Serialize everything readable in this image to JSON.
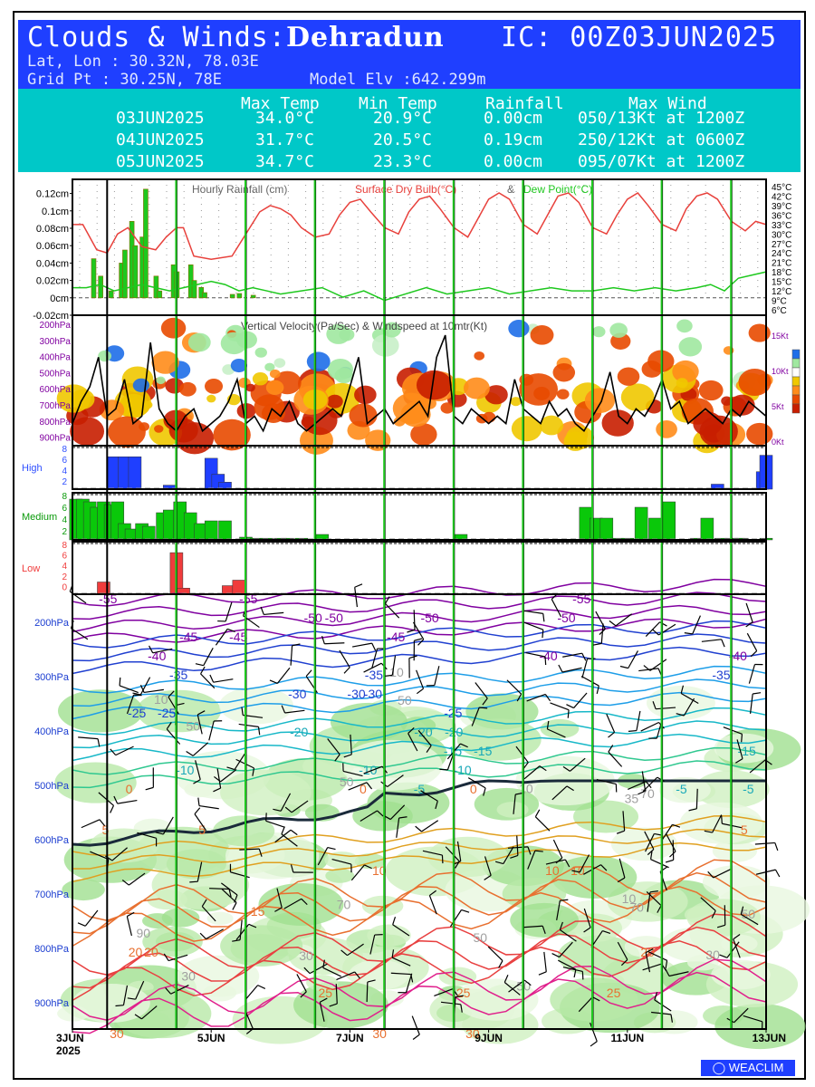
{
  "header": {
    "title_prefix": "Clouds & Winds:",
    "station": "Dehradun",
    "ic": "IC: 00Z03JUN2025",
    "latlon": "Lat, Lon : 30.32N, 78.03E",
    "gridpt": "Grid Pt  : 30.25N, 78E",
    "model_elv": "Model Elv :642.299m"
  },
  "summary": {
    "headers": [
      "Max Temp",
      "Min Temp",
      "Rainfall",
      "Max Wind"
    ],
    "rows": [
      {
        "date": "03JUN2025",
        "max_temp": "34.0°C",
        "min_temp": "20.9°C",
        "rainfall": "0.00cm",
        "max_wind": "050/13Kt at 1200Z"
      },
      {
        "date": "04JUN2025",
        "max_temp": "31.7°C",
        "min_temp": "20.5°C",
        "rainfall": "0.19cm",
        "max_wind": "250/12Kt at 0600Z"
      },
      {
        "date": "05JUN2025",
        "max_temp": "34.7°C",
        "min_temp": "23.3°C",
        "rainfall": "0.00cm",
        "max_wind": "095/07Kt at 1200Z"
      }
    ]
  },
  "colors": {
    "header_bg": "#1f3fff",
    "table_bg": "#00c8c8",
    "temp": "#e8413c",
    "dew": "#1ec81e",
    "rain": "#1ec81e",
    "high": "#1f3fff",
    "medium": "#0ac80a",
    "low": "#f03c3c",
    "vv_line": "#000000",
    "day_line": "#000000",
    "noon_line": "#1ec81e"
  },
  "chart_data": [
    {
      "type": "bar",
      "title": "Hourly Rainfall (cm)",
      "ylabels_left": [
        "0.12cm",
        "0.1cm",
        "0.08cm",
        "0.06cm",
        "0.04cm",
        "0.02cm",
        "0cm",
        "-0.02cm"
      ],
      "ylim": [
        -0.02,
        0.13
      ],
      "x": [
        0.3,
        0.4,
        0.55,
        0.7,
        0.75,
        0.85,
        0.9,
        1.0,
        1.05,
        1.2,
        1.25,
        1.45,
        1.5,
        1.7,
        1.75,
        1.85,
        1.9,
        2.3,
        2.4,
        2.6
      ],
      "values": [
        0.045,
        0.025,
        0.008,
        0.04,
        0.055,
        0.088,
        0.06,
        0.07,
        0.125,
        0.025,
        0.008,
        0.038,
        0.03,
        0.038,
        0.02,
        0.012,
        0.006,
        0.004,
        0.005,
        0.003
      ]
    },
    {
      "type": "line",
      "series": [
        {
          "name": "Surface Dry Bulb(°C)",
          "x": [
            0,
            0.15,
            0.35,
            0.5,
            0.65,
            0.8,
            1.0,
            1.2,
            1.35,
            1.5,
            1.6,
            1.75,
            2.0,
            2.3,
            2.5,
            2.7,
            2.85,
            3.0,
            3.15,
            3.3,
            3.5,
            3.7,
            3.85,
            4.0,
            4.15,
            4.3,
            4.5,
            4.7,
            4.85,
            5.0,
            5.15,
            5.3,
            5.5,
            5.7,
            5.85,
            6.0,
            6.15,
            6.3,
            6.5,
            6.7,
            6.85,
            7.0,
            7.15,
            7.3,
            7.5,
            7.7,
            7.85,
            8.0,
            8.15,
            8.3,
            8.5,
            8.7,
            8.85,
            9.0,
            9.15,
            9.3,
            9.5,
            9.7,
            9.85,
            10.0
          ],
          "values": [
            33,
            33,
            25,
            24,
            30,
            32,
            26,
            25,
            29,
            32,
            32,
            23,
            22,
            23,
            30,
            37,
            39,
            38,
            36,
            32,
            29,
            30,
            36,
            40,
            41,
            37,
            32,
            30,
            37,
            41,
            42,
            38,
            32,
            29,
            35,
            41,
            43,
            41,
            33,
            30,
            36,
            42,
            43,
            40,
            32,
            30,
            36,
            41,
            43,
            39,
            33,
            31,
            38,
            42,
            43,
            41,
            34,
            31,
            34,
            33
          ]
        },
        {
          "name": "Dew Point(°C)",
          "x": [
            0,
            0.2,
            0.4,
            0.6,
            0.8,
            1.0,
            1.2,
            1.4,
            1.6,
            1.8,
            2.0,
            2.2,
            2.4,
            2.6,
            2.8,
            3.0,
            3.3,
            3.6,
            3.9,
            4.2,
            4.5,
            4.8,
            5.1,
            5.4,
            5.7,
            6.0,
            6.3,
            6.6,
            6.9,
            7.2,
            7.5,
            7.8,
            8.1,
            8.4,
            8.7,
            9.0,
            9.2,
            9.4,
            9.6,
            9.8,
            10.0
          ],
          "values": [
            13,
            13,
            14,
            12,
            13,
            14,
            13,
            12,
            13,
            14,
            15,
            14,
            12,
            13,
            12,
            11,
            12,
            13,
            10,
            12,
            9,
            11,
            13,
            11,
            12,
            13,
            11,
            12,
            13,
            12,
            12,
            13,
            12,
            13,
            12,
            13,
            14,
            12,
            16,
            17,
            18
          ]
        }
      ],
      "ylabels_right": [
        "45°C",
        "42°C",
        "39°C",
        "36°C",
        "33°C",
        "30°C",
        "27°C",
        "24°C",
        "21°C",
        "18°C",
        "15°C",
        "12°C",
        "9°C",
        "6°C"
      ],
      "ylim": [
        6,
        45
      ]
    },
    {
      "type": "heatmap",
      "title": "Vertical Velocity(Pa/Sec) & Windspeed at 10mtr(Kt)",
      "ylabels_left": [
        "200hPa",
        "300hPa",
        "400hPa",
        "500hPa",
        "600hPa",
        "700hPa",
        "800hPa",
        "900hPa"
      ],
      "ylabels_right": [
        "15Kt",
        "10Kt",
        "5Kt",
        "0Kt"
      ],
      "windspeed_kt": [
        3,
        6,
        8,
        12,
        4,
        5,
        9,
        3,
        4,
        14,
        5,
        3,
        2,
        4,
        5,
        2,
        3,
        4,
        6,
        9,
        3,
        4,
        2,
        5,
        4,
        6,
        3,
        2,
        3,
        4,
        5,
        4,
        8,
        12,
        3,
        4,
        5,
        3,
        4,
        5,
        6,
        4,
        12,
        15,
        4,
        3,
        5,
        4,
        3,
        4,
        3,
        9,
        5,
        4,
        3,
        6,
        4,
        5,
        3,
        2,
        4,
        6,
        10,
        4,
        3,
        5,
        4,
        6,
        9,
        5,
        6,
        3,
        4,
        5,
        4,
        3,
        5,
        4,
        6,
        5,
        4
      ]
    },
    {
      "type": "bar",
      "title": "High",
      "ylabels": [
        "8",
        "6",
        "4",
        "2"
      ],
      "ylim": [
        0,
        8
      ],
      "x": [
        0.6,
        0.75,
        0.9,
        1.4,
        1.55,
        2.0,
        2.1,
        2.2,
        9.3,
        9.95,
        10.0
      ],
      "values": [
        6.5,
        6.5,
        6.5,
        0.8,
        0.2,
        6.2,
        3.0,
        1.4,
        1.0,
        3.5,
        6.8
      ]
    },
    {
      "type": "bar",
      "title": "Medium",
      "ylabels": [
        "8",
        "6",
        "4",
        "2"
      ],
      "ylim": [
        0,
        8
      ],
      "x": [
        0.05,
        0.15,
        0.25,
        0.35,
        0.45,
        0.55,
        0.65,
        0.75,
        0.85,
        1.0,
        1.1,
        1.3,
        1.4,
        1.55,
        1.7,
        1.85,
        2.0,
        2.2,
        2.5,
        2.65,
        2.8,
        3.0,
        3.1,
        3.3,
        3.6,
        5.6,
        7.4,
        7.55,
        7.7,
        7.85,
        8.0,
        8.2,
        8.4,
        8.6,
        9.0,
        9.15,
        9.35,
        9.5,
        9.6,
        9.65,
        10.0
      ],
      "values": [
        7.5,
        7.5,
        7,
        6,
        7,
        6.5,
        7,
        3,
        2,
        3,
        2.5,
        5,
        5.5,
        7,
        5,
        3,
        3.5,
        3.5,
        0.5,
        0.3,
        0.3,
        0.3,
        0.3,
        0.3,
        1,
        1,
        6,
        4,
        4,
        0.3,
        0.3,
        6,
        4,
        7,
        0.3,
        4,
        0.3,
        0.3,
        0.3,
        0.3,
        0.3
      ]
    },
    {
      "type": "bar",
      "title": "Low",
      "ylabels": [
        "8",
        "6",
        "4",
        "2",
        "0"
      ],
      "ylim": [
        0,
        8
      ],
      "x": [
        0.45,
        1.5,
        1.6,
        2.25,
        2.4
      ],
      "values": [
        2.0,
        6.8,
        1.0,
        1.4,
        2.3
      ]
    },
    {
      "type": "line",
      "title": "",
      "ylabels_left": [
        "200hPa",
        "300hPa",
        "400hPa",
        "500hPa",
        "600hPa",
        "700hPa",
        "800hPa",
        "900hPa"
      ],
      "x_ticks": [
        "3JUN",
        "5JUN",
        "7JUN",
        "9JUN",
        "11JUN",
        "13JUN"
      ],
      "x_year": "2025",
      "contour_labels": [
        "-50",
        "-55",
        "-50",
        "-45",
        "-40",
        "-35",
        "-30",
        "-25",
        "-20",
        "-15",
        "-10",
        "-5",
        "0",
        "5",
        "10",
        "15",
        "20",
        "25",
        "30",
        "-55",
        "-50",
        "-45",
        "-40",
        "-35",
        "-30",
        "-25",
        "-20",
        "-15",
        "-10",
        "-5",
        "0",
        "5",
        "10",
        "20",
        "25",
        "30",
        "-55",
        "-50",
        "-45",
        "-40",
        "-35",
        "-30",
        "-25",
        "-20",
        "-15",
        "-10",
        "-5",
        "0",
        "5",
        "10",
        "20",
        "25",
        "30",
        "35",
        "70",
        "90",
        "70",
        "50",
        "50",
        "70",
        "10",
        "50",
        "10",
        "50",
        "30",
        "10",
        "10",
        "30",
        "50",
        "30",
        "50"
      ]
    }
  ],
  "branding": {
    "logo_text": "WEACLIM"
  }
}
